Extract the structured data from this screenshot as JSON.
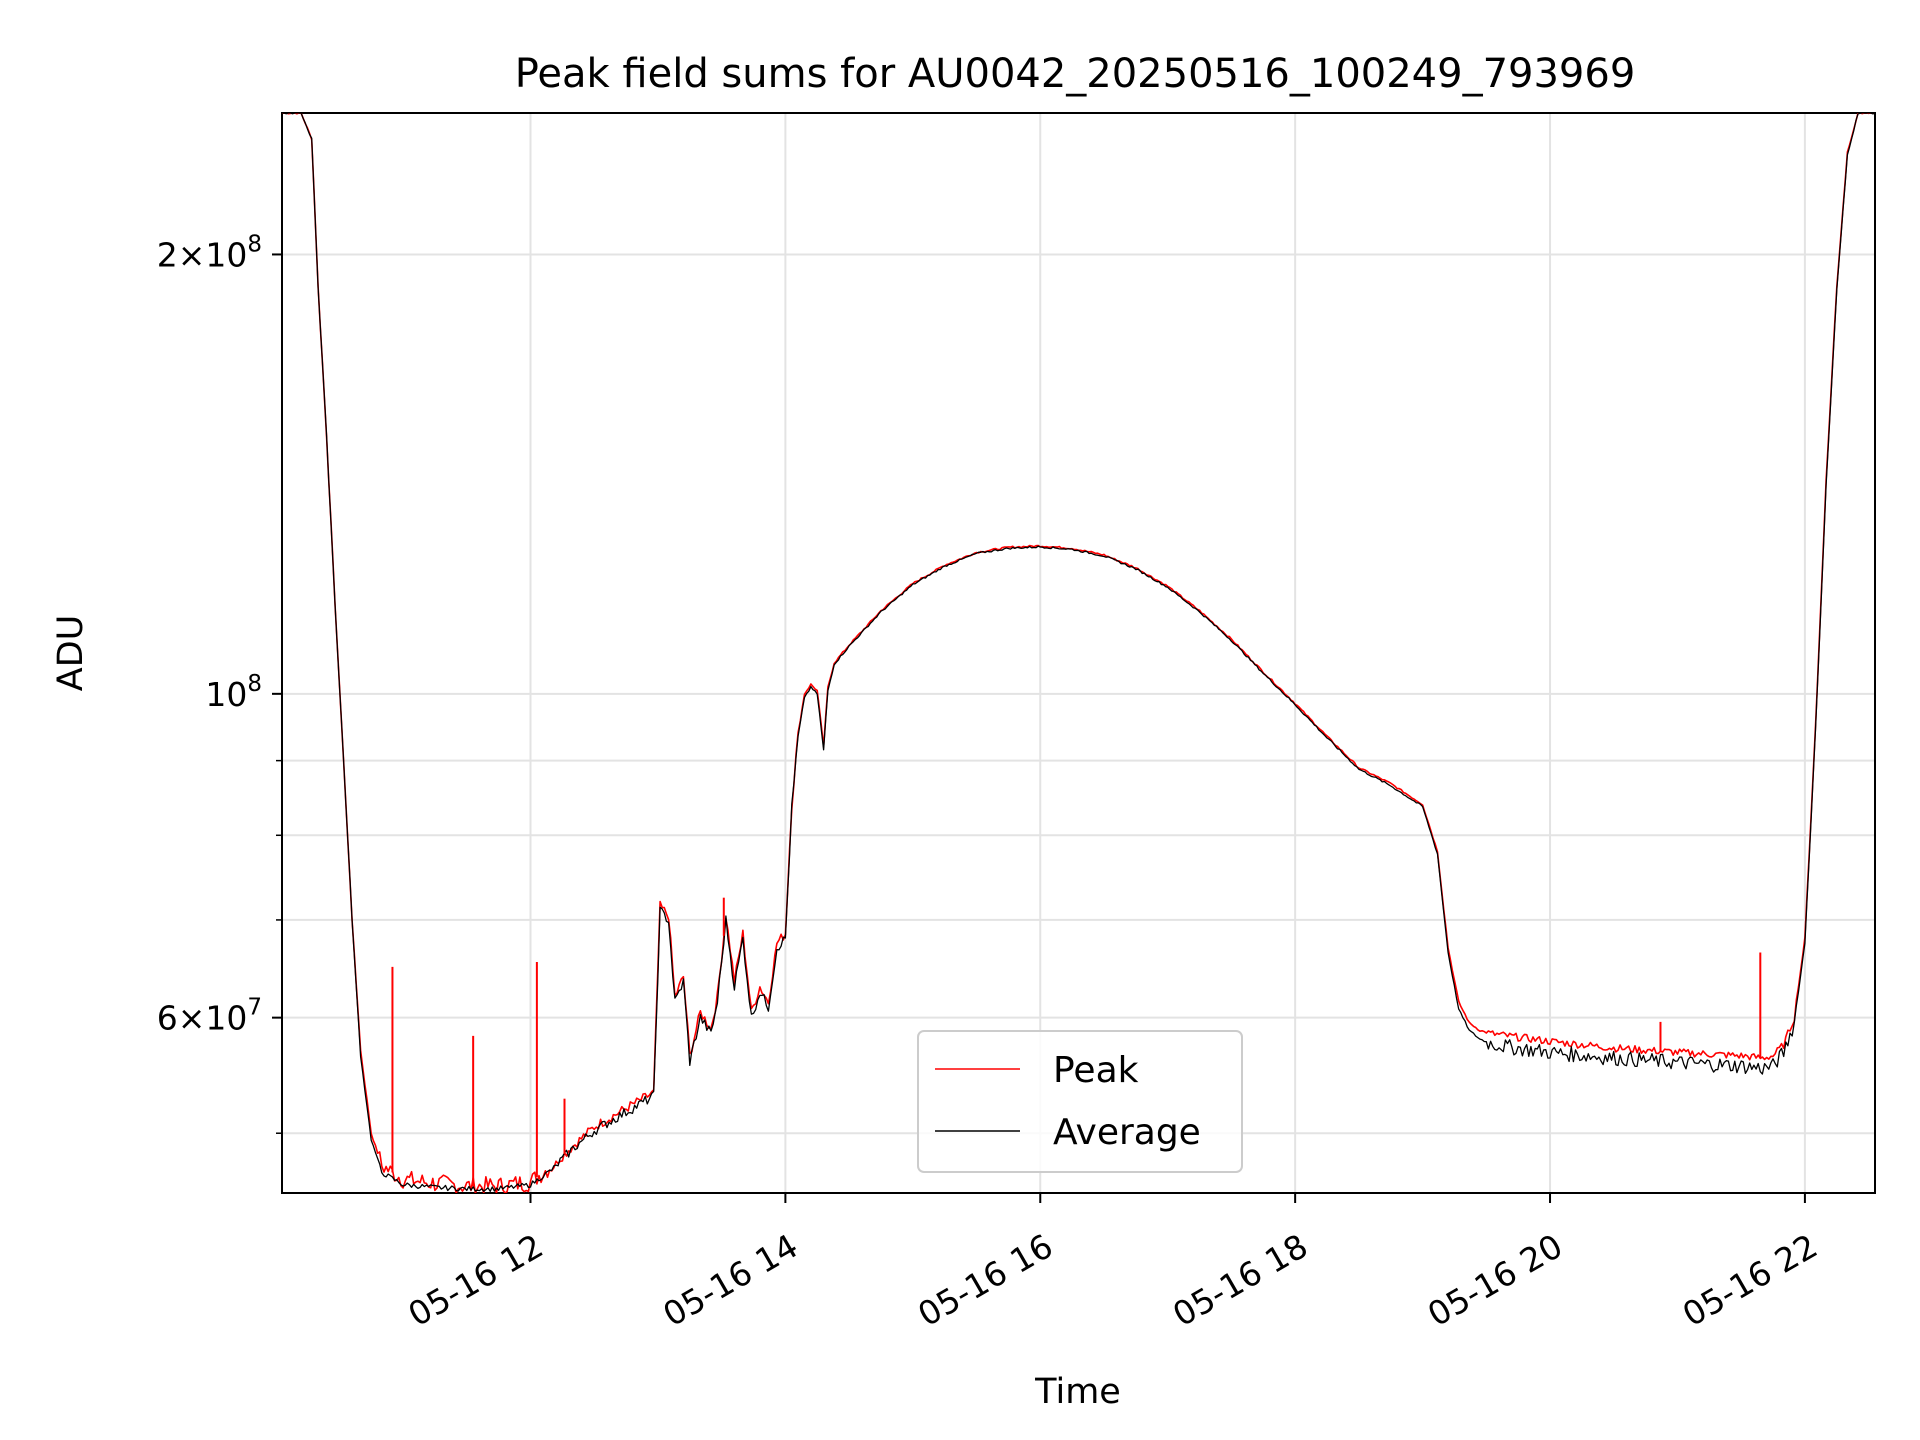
{
  "chart_data": {
    "type": "line",
    "title": "Peak field sums for AU0042_20250516_100249_793969",
    "xlabel": "Time",
    "ylabel": "ADU",
    "y_scale": "log",
    "ylim": [
      45500000,
      250000000
    ],
    "xlim": [
      "2025-05-16 10:03",
      "2025-05-16 22:33"
    ],
    "grid": true,
    "legend_position": "lower center",
    "x_tick_labels": [
      "05-16 12",
      "05-16 14",
      "05-16 16",
      "05-16 18",
      "05-16 20",
      "05-16 22"
    ],
    "x_ticks": [
      "2025-05-16 12:00",
      "2025-05-16 14:00",
      "2025-05-16 16:00",
      "2025-05-16 18:00",
      "2025-05-16 20:00",
      "2025-05-16 22:00"
    ],
    "y_tick_labels": [
      {
        "value": 200000000,
        "mantissa": "2",
        "exponent": "8"
      },
      {
        "value": 100000000,
        "mantissa": "",
        "exponent": "8"
      },
      {
        "value": 60000000,
        "mantissa": "6",
        "exponent": "7"
      }
    ],
    "y_minor_ticks": [
      50000000,
      70000000,
      80000000,
      90000000
    ],
    "series": [
      {
        "name": "Peak",
        "color": "#ff0000",
        "x": [
          "2025-05-16 10:03",
          "2025-05-16 10:12",
          "2025-05-16 10:17",
          "2025-05-16 10:20",
          "2025-05-16 10:24",
          "2025-05-16 10:28",
          "2025-05-16 10:32",
          "2025-05-16 10:36",
          "2025-05-16 10:40",
          "2025-05-16 10:45",
          "2025-05-16 10:50",
          "2025-05-16 11:00",
          "2025-05-16 11:15",
          "2025-05-16 11:30",
          "2025-05-16 11:45",
          "2025-05-16 12:00",
          "2025-05-16 12:10",
          "2025-05-16 12:20",
          "2025-05-16 12:30",
          "2025-05-16 12:40",
          "2025-05-16 12:50",
          "2025-05-16 12:55",
          "2025-05-16 12:58",
          "2025-05-16 13:01",
          "2025-05-16 13:05",
          "2025-05-16 13:08",
          "2025-05-16 13:12",
          "2025-05-16 13:15",
          "2025-05-16 13:20",
          "2025-05-16 13:25",
          "2025-05-16 13:28",
          "2025-05-16 13:32",
          "2025-05-16 13:36",
          "2025-05-16 13:40",
          "2025-05-16 13:44",
          "2025-05-16 13:48",
          "2025-05-16 13:52",
          "2025-05-16 13:56",
          "2025-05-16 14:00",
          "2025-05-16 14:03",
          "2025-05-16 14:06",
          "2025-05-16 14:09",
          "2025-05-16 14:12",
          "2025-05-16 14:15",
          "2025-05-16 14:18",
          "2025-05-16 14:20",
          "2025-05-16 14:23",
          "2025-05-16 14:30",
          "2025-05-16 14:45",
          "2025-05-16 15:00",
          "2025-05-16 15:15",
          "2025-05-16 15:30",
          "2025-05-16 15:45",
          "2025-05-16 16:00",
          "2025-05-16 16:15",
          "2025-05-16 16:30",
          "2025-05-16 16:45",
          "2025-05-16 17:00",
          "2025-05-16 17:15",
          "2025-05-16 17:30",
          "2025-05-16 17:45",
          "2025-05-16 18:00",
          "2025-05-16 18:15",
          "2025-05-16 18:30",
          "2025-05-16 18:45",
          "2025-05-16 19:00",
          "2025-05-16 19:07",
          "2025-05-16 19:12",
          "2025-05-16 19:17",
          "2025-05-16 19:22",
          "2025-05-16 19:27",
          "2025-05-16 19:32",
          "2025-05-16 19:40",
          "2025-05-16 20:00",
          "2025-05-16 20:30",
          "2025-05-16 21:00",
          "2025-05-16 21:30",
          "2025-05-16 21:40",
          "2025-05-16 21:45",
          "2025-05-16 21:50",
          "2025-05-16 21:55",
          "2025-05-16 22:00",
          "2025-05-16 22:05",
          "2025-05-16 22:10",
          "2025-05-16 22:15",
          "2025-05-16 22:20",
          "2025-05-16 22:25",
          "2025-05-16 22:33"
        ],
        "y": [
          250000000,
          250000000,
          240000000,
          190000000,
          150000000,
          115000000,
          90000000,
          70000000,
          57000000,
          50000000,
          47500000,
          46500000,
          46200000,
          46000000,
          46000000,
          46300000,
          47500000,
          49000000,
          50500000,
          51500000,
          52500000,
          53000000,
          53300000,
          71500000,
          70500000,
          62000000,
          64000000,
          56500000,
          60500000,
          59000000,
          62000000,
          70500000,
          63500000,
          68500000,
          60500000,
          63000000,
          61500000,
          67500000,
          68500000,
          84000000,
          94000000,
          100000000,
          101500000,
          100500000,
          92000000,
          101000000,
          105000000,
          108000000,
          114000000,
          119000000,
          122500000,
          125000000,
          126000000,
          126300000,
          125800000,
          124500000,
          122000000,
          118500000,
          114000000,
          109000000,
          103500000,
          98500000,
          93500000,
          89000000,
          86800000,
          84000000,
          78000000,
          67000000,
          61500000,
          59500000,
          58800000,
          58500000,
          58300000,
          57800000,
          57200000,
          56800000,
          56500000,
          56300000,
          56500000,
          57500000,
          60000000,
          68000000,
          95000000,
          140000000,
          190000000,
          235000000,
          250000000,
          250000000
        ]
      },
      {
        "name": "Average",
        "color": "#000000",
        "x": [
          "2025-05-16 10:03",
          "2025-05-16 10:12",
          "2025-05-16 10:17",
          "2025-05-16 10:20",
          "2025-05-16 10:24",
          "2025-05-16 10:28",
          "2025-05-16 10:32",
          "2025-05-16 10:36",
          "2025-05-16 10:40",
          "2025-05-16 10:45",
          "2025-05-16 10:50",
          "2025-05-16 11:00",
          "2025-05-16 11:15",
          "2025-05-16 11:30",
          "2025-05-16 11:45",
          "2025-05-16 12:00",
          "2025-05-16 12:10",
          "2025-05-16 12:20",
          "2025-05-16 12:30",
          "2025-05-16 12:40",
          "2025-05-16 12:50",
          "2025-05-16 12:55",
          "2025-05-16 12:58",
          "2025-05-16 13:01",
          "2025-05-16 13:05",
          "2025-05-16 13:08",
          "2025-05-16 13:12",
          "2025-05-16 13:15",
          "2025-05-16 13:20",
          "2025-05-16 13:25",
          "2025-05-16 13:28",
          "2025-05-16 13:32",
          "2025-05-16 13:36",
          "2025-05-16 13:40",
          "2025-05-16 13:44",
          "2025-05-16 13:48",
          "2025-05-16 13:52",
          "2025-05-16 13:56",
          "2025-05-16 14:00",
          "2025-05-16 14:03",
          "2025-05-16 14:06",
          "2025-05-16 14:09",
          "2025-05-16 14:12",
          "2025-05-16 14:15",
          "2025-05-16 14:18",
          "2025-05-16 14:20",
          "2025-05-16 14:23",
          "2025-05-16 14:30",
          "2025-05-16 14:45",
          "2025-05-16 15:00",
          "2025-05-16 15:15",
          "2025-05-16 15:30",
          "2025-05-16 15:45",
          "2025-05-16 16:00",
          "2025-05-16 16:15",
          "2025-05-16 16:30",
          "2025-05-16 16:45",
          "2025-05-16 17:00",
          "2025-05-16 17:15",
          "2025-05-16 17:30",
          "2025-05-16 17:45",
          "2025-05-16 18:00",
          "2025-05-16 18:15",
          "2025-05-16 18:30",
          "2025-05-16 18:45",
          "2025-05-16 19:00",
          "2025-05-16 19:07",
          "2025-05-16 19:12",
          "2025-05-16 19:17",
          "2025-05-16 19:22",
          "2025-05-16 19:27",
          "2025-05-16 19:32",
          "2025-05-16 19:40",
          "2025-05-16 20:00",
          "2025-05-16 20:30",
          "2025-05-16 21:00",
          "2025-05-16 21:30",
          "2025-05-16 21:40",
          "2025-05-16 21:45",
          "2025-05-16 21:50",
          "2025-05-16 21:55",
          "2025-05-16 22:00",
          "2025-05-16 22:05",
          "2025-05-16 22:10",
          "2025-05-16 22:15",
          "2025-05-16 22:20",
          "2025-05-16 22:25",
          "2025-05-16 22:33"
        ],
        "y": [
          250000000,
          250000000,
          240000000,
          190000000,
          150000000,
          115000000,
          90000000,
          70000000,
          56500000,
          49500000,
          47000000,
          46100000,
          45900000,
          45800000,
          45800000,
          46100000,
          47200000,
          48800000,
          50200000,
          51200000,
          52200000,
          52700000,
          53000000,
          71000000,
          70000000,
          61500000,
          63500000,
          56000000,
          60000000,
          58500000,
          61500000,
          70000000,
          63000000,
          68000000,
          60000000,
          62500000,
          61000000,
          67000000,
          68000000,
          83500000,
          93500000,
          99500000,
          101000000,
          100000000,
          91500000,
          100500000,
          104800000,
          107800000,
          113800000,
          118800000,
          122300000,
          124800000,
          125800000,
          126100000,
          125600000,
          124300000,
          121800000,
          118300000,
          113800000,
          108800000,
          103300000,
          98300000,
          93300000,
          88800000,
          86500000,
          83700000,
          77700000,
          66500000,
          60800000,
          58800000,
          58000000,
          57600000,
          57300000,
          56800000,
          56300000,
          55900000,
          55600000,
          55400000,
          55600000,
          56800000,
          59500000,
          67500000,
          94500000,
          139000000,
          189000000,
          234000000,
          250000000,
          250000000
        ]
      }
    ],
    "spikes": {
      "Peak": [
        {
          "x": "2025-05-16 10:55",
          "y": 65000000
        },
        {
          "x": "2025-05-16 11:33",
          "y": 58300000
        },
        {
          "x": "2025-05-16 12:03",
          "y": 65500000
        },
        {
          "x": "2025-05-16 12:16",
          "y": 52800000
        },
        {
          "x": "2025-05-16 13:31",
          "y": 72500000
        },
        {
          "x": "2025-05-16 20:52",
          "y": 59600000
        },
        {
          "x": "2025-05-16 21:39",
          "y": 66500000
        }
      ]
    }
  }
}
